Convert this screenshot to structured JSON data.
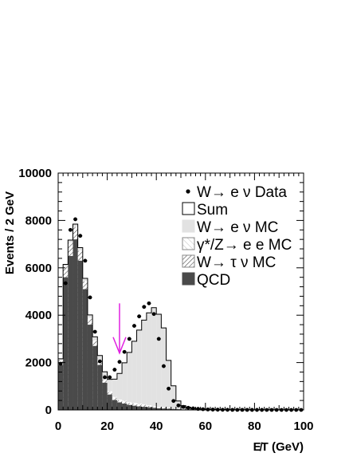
{
  "chart_data": {
    "type": "bar",
    "xlabel": "E̸T (GeV)",
    "ylabel": "Events / 2 GeV",
    "xlim": [
      0,
      100
    ],
    "ylim": [
      0,
      10000
    ],
    "x_ticks": [
      "0",
      "20",
      "40",
      "60",
      "80",
      "100"
    ],
    "y_ticks": [
      "0",
      "2000",
      "4000",
      "6000",
      "8000",
      "10000"
    ],
    "bin_width": 2,
    "bin_lo": [
      0,
      2,
      4,
      6,
      8,
      10,
      12,
      14,
      16,
      18,
      20,
      22,
      24,
      26,
      28,
      30,
      32,
      34,
      36,
      38,
      40,
      42,
      44,
      46,
      48,
      50,
      52,
      54,
      56,
      58,
      60,
      62,
      64,
      66,
      68,
      70,
      72,
      74,
      76,
      78,
      80,
      82,
      84,
      86,
      88,
      90,
      92,
      94,
      96,
      98
    ],
    "series": [
      {
        "name": "QCD",
        "color": "#4a4a4a",
        "values": [
          1900,
          5600,
          6500,
          7200,
          6300,
          5100,
          3600,
          2700,
          1900,
          1150,
          650,
          420,
          320,
          270,
          210,
          180,
          150,
          130,
          110,
          90,
          70,
          60,
          50,
          40,
          30,
          20,
          15,
          10,
          8,
          5,
          4,
          3,
          2,
          2,
          1,
          1,
          1,
          1,
          1,
          1,
          1,
          1,
          1,
          1,
          1,
          1,
          1,
          1,
          1,
          1
        ]
      },
      {
        "name": "W→ τ ν MC",
        "pattern": "hatch-dense",
        "values": [
          200,
          450,
          550,
          520,
          420,
          320,
          250,
          200,
          160,
          120,
          100,
          90,
          80,
          80,
          80,
          80,
          80,
          70,
          60,
          50,
          40,
          30,
          20,
          15,
          10,
          5,
          3,
          2,
          1,
          1,
          0,
          0,
          0,
          0,
          0,
          0,
          0,
          0,
          0,
          0,
          0,
          0,
          0,
          0,
          0,
          0,
          0,
          0,
          0,
          0
        ]
      },
      {
        "name": "γ*/Z→ e e MC",
        "pattern": "hatch-light",
        "values": [
          10,
          15,
          20,
          25,
          30,
          35,
          40,
          40,
          40,
          40,
          40,
          40,
          40,
          40,
          40,
          40,
          40,
          40,
          30,
          30,
          30,
          25,
          20,
          15,
          10,
          8,
          6,
          5,
          4,
          3,
          3,
          2,
          2,
          2,
          1,
          1,
          1,
          1,
          1,
          1,
          0,
          0,
          0,
          0,
          0,
          0,
          0,
          0,
          0,
          0
        ]
      },
      {
        "name": "W→ e ν MC",
        "color": "#e2e2e2",
        "values": [
          50,
          80,
          100,
          100,
          100,
          100,
          120,
          150,
          200,
          300,
          500,
          750,
          1100,
          1600,
          2100,
          2600,
          3100,
          3550,
          3900,
          4150,
          3900,
          3350,
          2000,
          950,
          330,
          150,
          90,
          60,
          45,
          35,
          28,
          20,
          15,
          12,
          10,
          8,
          7,
          6,
          5,
          4,
          3,
          3,
          2,
          2,
          2,
          1,
          1,
          1,
          1,
          1
        ]
      }
    ],
    "sum_label": "Sum",
    "data_series": {
      "name": "W→ e ν Data",
      "values": [
        1950,
        5350,
        7600,
        8050,
        7350,
        6300,
        4750,
        3300,
        2050,
        1380,
        1380,
        1700,
        2030,
        2450,
        3000,
        3550,
        3950,
        4350,
        4500,
        4050,
        3000,
        1850,
        900,
        380,
        190,
        130,
        90,
        65,
        45,
        30,
        20,
        15,
        10,
        8,
        6,
        4,
        3,
        3,
        2,
        2,
        2,
        2,
        1,
        1,
        1,
        1,
        1,
        1,
        1,
        1
      ]
    },
    "annotation": {
      "type": "arrow",
      "x": 25,
      "y_from": 4500,
      "y_to": 2400,
      "color": "#e020e0"
    },
    "legend": {
      "placement": "top-right",
      "entries": [
        "W→ e ν Data",
        "Sum",
        "W→ e ν MC",
        "γ*/Z→ e e MC",
        "W→ τ ν MC",
        "QCD"
      ]
    }
  }
}
